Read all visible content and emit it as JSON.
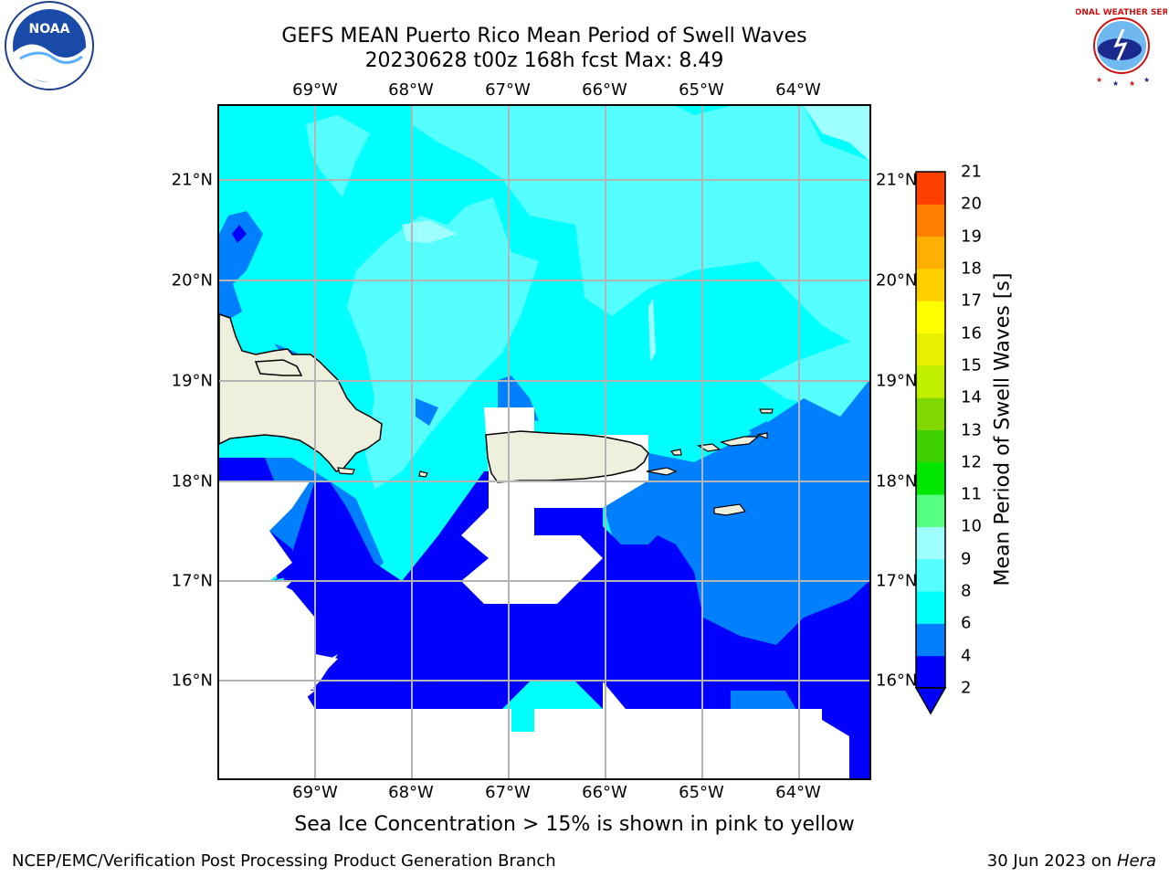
{
  "title_line1": "GEFS MEAN Puerto Rico Mean Period of Swell Waves",
  "title_line2": "20230628 t00z 168h fcst   Max: 8.49",
  "lon_labels": [
    "69°W",
    "68°W",
    "67°W",
    "66°W",
    "65°W",
    "64°W"
  ],
  "lat_labels": [
    "21°N",
    "20°N",
    "19°N",
    "18°N",
    "17°N",
    "16°N"
  ],
  "colorbar": {
    "label": "Mean Period of Swell Waves [s]",
    "ticks": [
      "2",
      "4",
      "6",
      "8",
      "9",
      "10",
      "11",
      "12",
      "13",
      "14",
      "15",
      "16",
      "17",
      "18",
      "19",
      "20",
      "21"
    ],
    "colors": [
      "#0000ff",
      "#0080ff",
      "#00ffff",
      "#55ffff",
      "#9effff",
      "#55ff80",
      "#00e600",
      "#40d000",
      "#80d800",
      "#c0f000",
      "#e8f000",
      "#ffff00",
      "#ffd000",
      "#ffb000",
      "#ff8000",
      "#ff4000",
      "#ff0000"
    ]
  },
  "map_colors": {
    "land": "#efefde",
    "grid": "#b4b4b4",
    "no_data": "#ffffff"
  },
  "footnote": "Sea Ice Concentration > 15% is shown in pink to yellow",
  "footer_left": "NCEP/EMC/Verification Post Processing Product Generation Branch",
  "footer_right_date": "30 Jun 2023 on ",
  "footer_right_machine": "Hera",
  "logos": {
    "noaa_text": "NOAA",
    "nws_text": "NATIONAL WEATHER SERVICE"
  }
}
